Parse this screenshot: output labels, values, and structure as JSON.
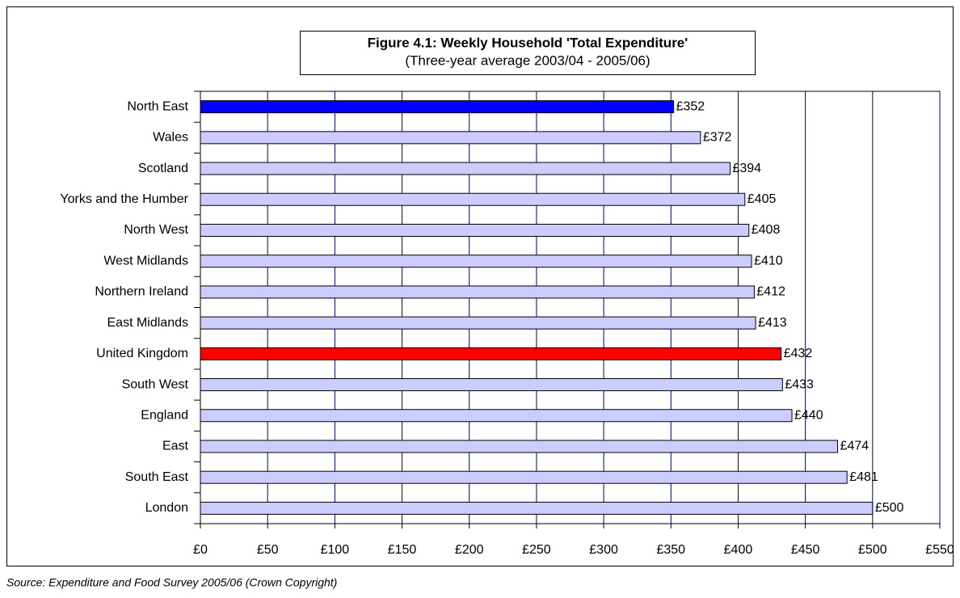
{
  "chart_data": {
    "type": "bar",
    "orientation": "horizontal",
    "title": "Figure 4.1: Weekly Household 'Total Expenditure'",
    "subtitle": "(Three-year average 2003/04 - 2005/06)",
    "source": "Source: Expenditure and Food Survey 2005/06 (Crown Copyright)",
    "categories": [
      "North East",
      "Wales",
      "Scotland",
      "Yorks and the Humber",
      "North West",
      "West Midlands",
      "Northern Ireland",
      "East Midlands",
      "United Kingdom",
      "South West",
      "England",
      "East",
      "South East",
      "London"
    ],
    "values": [
      352,
      372,
      394,
      405,
      408,
      410,
      412,
      413,
      432,
      433,
      440,
      474,
      481,
      500
    ],
    "value_labels": [
      "£352",
      "£372",
      "£394",
      "£405",
      "£408",
      "£410",
      "£412",
      "£413",
      "£432",
      "£433",
      "£440",
      "£474",
      "£481",
      "£500"
    ],
    "colors": [
      "#0000ff",
      "#ccccff",
      "#ccccff",
      "#ccccff",
      "#ccccff",
      "#ccccff",
      "#ccccff",
      "#ccccff",
      "#ff0000",
      "#ccccff",
      "#ccccff",
      "#ccccff",
      "#ccccff",
      "#ccccff"
    ],
    "xlim": [
      0,
      550
    ],
    "xticks": [
      {
        "value": 0,
        "label": "£0"
      },
      {
        "value": 50,
        "label": "£50"
      },
      {
        "value": 100,
        "label": "£100"
      },
      {
        "value": 150,
        "label": "£150"
      },
      {
        "value": 200,
        "label": "£200"
      },
      {
        "value": 250,
        "label": "£250"
      },
      {
        "value": 300,
        "label": "£300"
      },
      {
        "value": 350,
        "label": "£350"
      },
      {
        "value": 400,
        "label": "£400"
      },
      {
        "value": 450,
        "label": "£450"
      },
      {
        "value": 500,
        "label": "£500"
      },
      {
        "value": 550,
        "label": "£550"
      }
    ],
    "grid": true,
    "grid_color": "#000080"
  }
}
